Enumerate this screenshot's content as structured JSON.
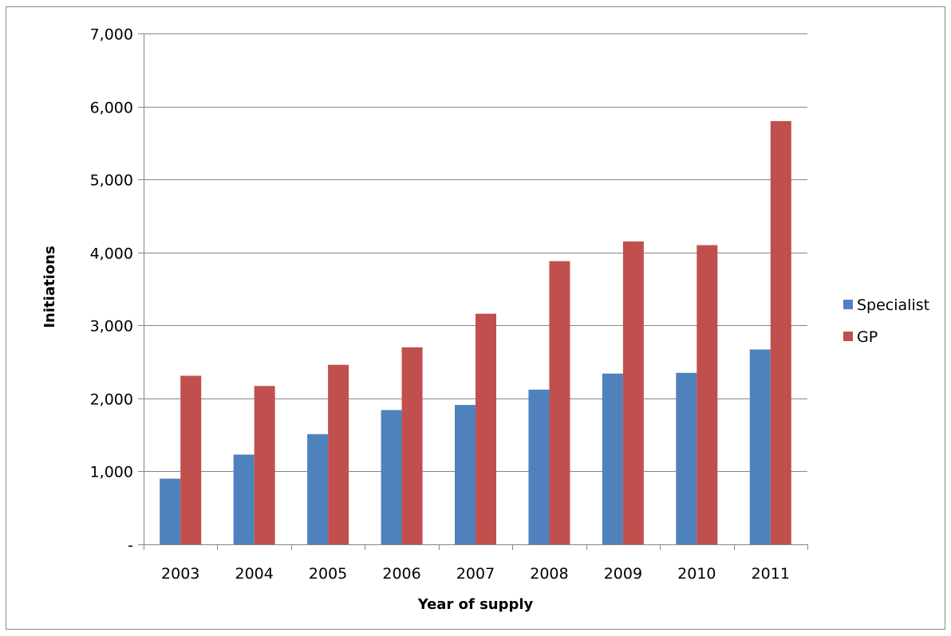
{
  "chart_data": {
    "type": "bar",
    "title": "",
    "xlabel": "Year of supply",
    "ylabel": "Initiations",
    "categories": [
      "2003",
      "2004",
      "2005",
      "2006",
      "2007",
      "2008",
      "2009",
      "2010",
      "2011"
    ],
    "series": [
      {
        "name": "Specialist",
        "color": "#4f81bd",
        "values": [
          900,
          1230,
          1510,
          1840,
          1910,
          2120,
          2340,
          2350,
          2670
        ]
      },
      {
        "name": "GP",
        "color": "#c0504d",
        "values": [
          2310,
          2170,
          2460,
          2700,
          3160,
          3880,
          4150,
          4100,
          5800
        ]
      }
    ],
    "ylim": [
      0,
      7000
    ],
    "yticks": [
      0,
      1000,
      2000,
      3000,
      4000,
      5000,
      6000,
      7000
    ],
    "ytick_labels": [
      "-",
      "1,000",
      "2,000",
      "3,000",
      "4,000",
      "5,000",
      "6,000",
      "7,000"
    ],
    "grid": true,
    "legend_position": "right",
    "gridline_color": "#868686",
    "axis_color": "#868686"
  }
}
